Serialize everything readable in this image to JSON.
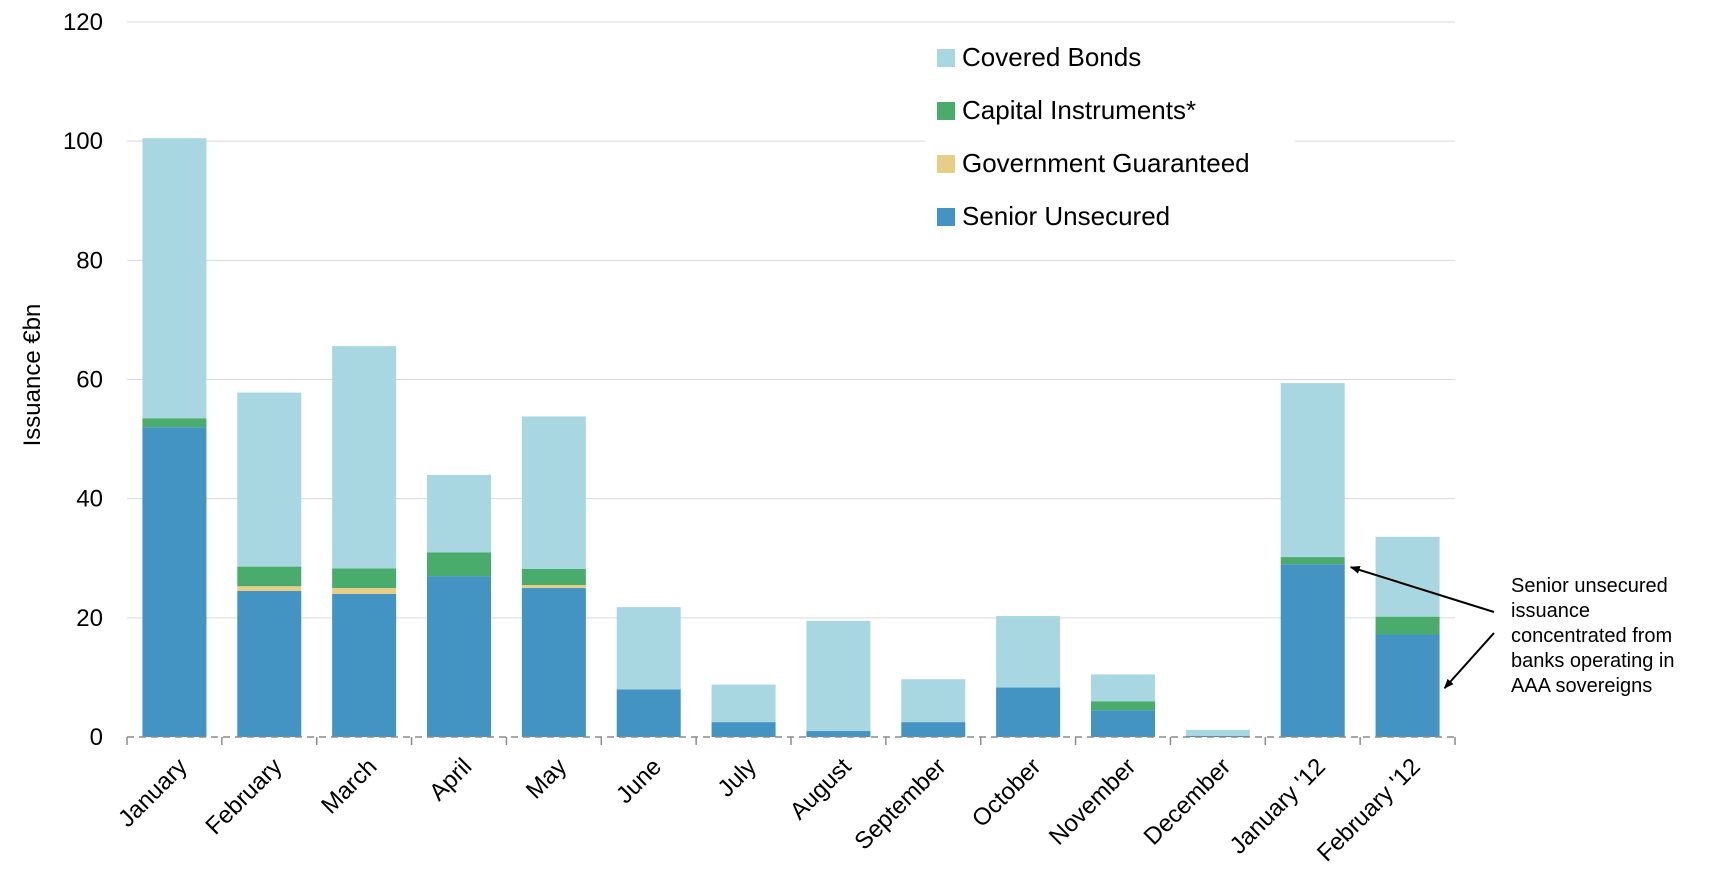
{
  "chart_data": {
    "type": "bar",
    "stacked": true,
    "ylabel": "Issuance €bn",
    "xlabel": "",
    "ylim": [
      0,
      120
    ],
    "yticks": [
      0,
      20,
      40,
      60,
      80,
      100,
      120
    ],
    "grid": true,
    "legend_position": "top-right",
    "categories": [
      "January",
      "February",
      "March",
      "April",
      "May",
      "June",
      "July",
      "August",
      "September",
      "October",
      "November",
      "December",
      "January '12",
      "February '12"
    ],
    "series": [
      {
        "name": "Senior Unsecured",
        "color": "#4393c3",
        "values": [
          52,
          24.5,
          24,
          27,
          25,
          8,
          2.5,
          1,
          2.5,
          8.3,
          4.5,
          0.2,
          29,
          17.2
        ]
      },
      {
        "name": "Government Guaranteed",
        "color": "#e8cd87",
        "values": [
          0,
          0.8,
          1,
          0,
          0.5,
          0,
          0,
          0,
          0,
          0,
          0,
          0,
          0,
          0
        ]
      },
      {
        "name": "Capital Instruments*",
        "color": "#4aac6c",
        "values": [
          1.5,
          3.3,
          3.3,
          4,
          2.7,
          0,
          0,
          0,
          0,
          0,
          1.5,
          0,
          1.2,
          3
        ]
      },
      {
        "name": "Covered Bonds",
        "color": "#a8d7e1",
        "values": [
          47,
          29.2,
          37.3,
          13,
          25.6,
          13.8,
          6.3,
          18.5,
          7.2,
          12,
          4.5,
          1,
          29.2,
          13.4
        ]
      }
    ],
    "legend_order": [
      "Covered Bonds",
      "Capital Instruments*",
      "Government Guaranteed",
      "Senior Unsecured"
    ],
    "annotation": {
      "lines": [
        "Senior unsecured",
        "issuance",
        "concentrated from",
        "banks operating in",
        "AAA sovereigns"
      ],
      "targets": [
        "January '12",
        "February '12"
      ]
    }
  }
}
